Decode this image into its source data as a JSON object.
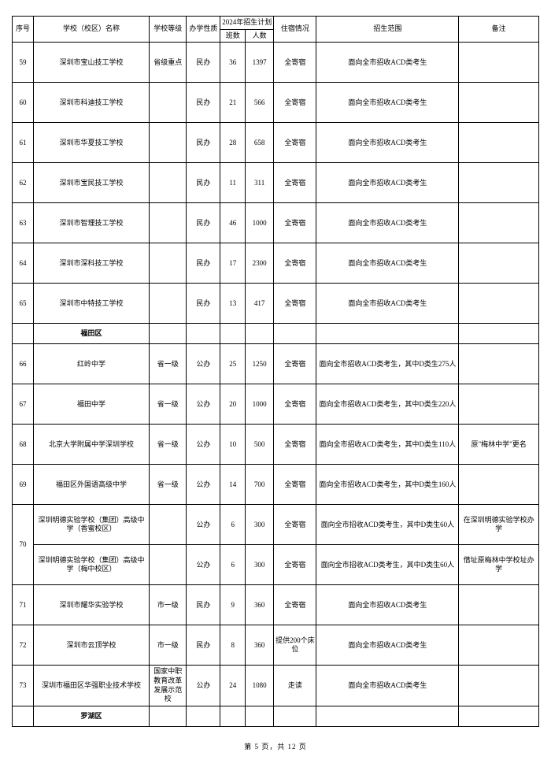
{
  "header": {
    "seq": "序号",
    "school": "学校（校区）名称",
    "level": "学校等级",
    "type": "办学性质",
    "plan_group": "2024年招生计划",
    "classes": "班数",
    "people": "人数",
    "accom": "住宿情况",
    "scope": "招生范围",
    "note": "备注"
  },
  "rows": [
    {
      "seq": "59",
      "school": "深圳市宝山技工学校",
      "level": "省级重点",
      "type": "民办",
      "classes": "36",
      "people": "1397",
      "accom": "全寄宿",
      "scope": "面向全市招收ACD类考生",
      "note": "",
      "rowspan": 1
    },
    {
      "seq": "60",
      "school": "深圳市科迪技工学校",
      "level": "",
      "type": "民办",
      "classes": "21",
      "people": "566",
      "accom": "全寄宿",
      "scope": "面向全市招收ACD类考生",
      "note": "",
      "rowspan": 1
    },
    {
      "seq": "61",
      "school": "深圳市华夏技工学校",
      "level": "",
      "type": "民办",
      "classes": "28",
      "people": "658",
      "accom": "全寄宿",
      "scope": "面向全市招收ACD类考生",
      "note": "",
      "rowspan": 1
    },
    {
      "seq": "62",
      "school": "深圳市宝民技工学校",
      "level": "",
      "type": "民办",
      "classes": "11",
      "people": "311",
      "accom": "全寄宿",
      "scope": "面向全市招收ACD类考生",
      "note": "",
      "rowspan": 1
    },
    {
      "seq": "63",
      "school": "深圳市智理技工学校",
      "level": "",
      "type": "民办",
      "classes": "46",
      "people": "1000",
      "accom": "全寄宿",
      "scope": "面向全市招收ACD类考生",
      "note": "",
      "rowspan": 1
    },
    {
      "seq": "64",
      "school": "深圳市深科技工学校",
      "level": "",
      "type": "民办",
      "classes": "17",
      "people": "2300",
      "accom": "全寄宿",
      "scope": "面向全市招收ACD类考生",
      "note": "",
      "rowspan": 1
    },
    {
      "seq": "65",
      "school": "深圳市中特技工学校",
      "level": "",
      "type": "民办",
      "classes": "13",
      "people": "417",
      "accom": "全寄宿",
      "scope": "面向全市招收ACD类考生",
      "note": "",
      "rowspan": 1
    },
    {
      "district": "福田区"
    },
    {
      "seq": "66",
      "school": "红岭中学",
      "level": "省一级",
      "type": "公办",
      "classes": "25",
      "people": "1250",
      "accom": "全寄宿",
      "scope": "面向全市招收ACD类考生，其中D类生275人",
      "note": "",
      "rowspan": 1
    },
    {
      "seq": "67",
      "school": "福田中学",
      "level": "省一级",
      "type": "公办",
      "classes": "20",
      "people": "1000",
      "accom": "全寄宿",
      "scope": "面向全市招收ACD类考生，其中D类生220人",
      "note": "",
      "rowspan": 1
    },
    {
      "seq": "68",
      "school": "北京大学附属中学深圳学校",
      "level": "省一级",
      "type": "公办",
      "classes": "10",
      "people": "500",
      "accom": "全寄宿",
      "scope": "面向全市招收ACD类考生，其中D类生110人",
      "note": "原\"梅林中学\"更名",
      "rowspan": 1
    },
    {
      "seq": "69",
      "school": "福田区外国语高级中学",
      "level": "省一级",
      "type": "公办",
      "classes": "14",
      "people": "700",
      "accom": "全寄宿",
      "scope": "面向全市招收ACD类考生，其中D类生160人",
      "note": "",
      "rowspan": 1
    },
    {
      "seq": "70",
      "school": "深圳明德实验学校（集团）高级中学（香蜜校区）",
      "level": "",
      "type": "公办",
      "classes": "6",
      "people": "300",
      "accom": "全寄宿",
      "scope": "面向全市招收ACD类考生，其中D类生60人",
      "note": "在深圳明德实验学校办学",
      "rowspan": 2
    },
    {
      "seq": "",
      "school": "深圳明德实验学校（集团）高级中学（梅中校区）",
      "level": "",
      "type": "公办",
      "classes": "6",
      "people": "300",
      "accom": "全寄宿",
      "scope": "面向全市招收ACD类考生，其中D类生60人",
      "note": "借址原梅林中学校址办学",
      "rowspan": 0
    },
    {
      "seq": "71",
      "school": "深圳市耀华实验学校",
      "level": "市一级",
      "type": "民办",
      "classes": "9",
      "people": "360",
      "accom": "全寄宿",
      "scope": "面向全市招收ACD类考生",
      "note": "",
      "rowspan": 1
    },
    {
      "seq": "72",
      "school": "深圳市云顶学校",
      "level": "市一级",
      "type": "民办",
      "classes": "8",
      "people": "360",
      "accom": "提供200个床位",
      "scope": "面向全市招收ACD类考生",
      "note": "",
      "rowspan": 1
    },
    {
      "seq": "73",
      "school": "深圳市福田区华强职业技术学校",
      "level": "国家中职教育改革发展示范校",
      "type": "公办",
      "classes": "24",
      "people": "1080",
      "accom": "走读",
      "scope": "面向全市招收ACD类考生",
      "note": "",
      "rowspan": 1
    },
    {
      "district": "罗湖区"
    }
  ],
  "footer": "第  5  页，共  12  页"
}
